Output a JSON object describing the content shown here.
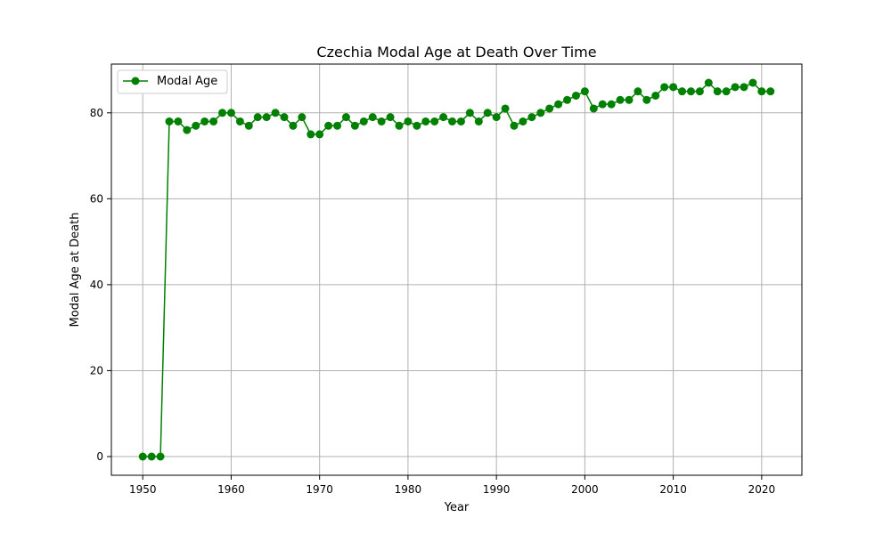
{
  "colors": {
    "series": "#008000",
    "grid": "#b0b0b0",
    "axes": "#000000",
    "background": "#ffffff"
  },
  "chart_data": {
    "type": "line",
    "title": "Czechia Modal Age at Death Over Time",
    "xlabel": "Year",
    "ylabel": "Modal Age at Death",
    "xlim": [
      1946.45,
      2024.55
    ],
    "ylim": [
      -4.35,
      91.35
    ],
    "xticks": [
      1950,
      1960,
      1970,
      1980,
      1990,
      2000,
      2010,
      2020
    ],
    "yticks": [
      0,
      20,
      40,
      60,
      80
    ],
    "grid": true,
    "legend": {
      "placement": "top-left",
      "entries": [
        "Modal Age"
      ]
    },
    "series": [
      {
        "name": "Modal Age",
        "color": "#008000",
        "marker": "circle",
        "x": [
          1950,
          1951,
          1952,
          1953,
          1954,
          1955,
          1956,
          1957,
          1958,
          1959,
          1960,
          1961,
          1962,
          1963,
          1964,
          1965,
          1966,
          1967,
          1968,
          1969,
          1970,
          1971,
          1972,
          1973,
          1974,
          1975,
          1976,
          1977,
          1978,
          1979,
          1980,
          1981,
          1982,
          1983,
          1984,
          1985,
          1986,
          1987,
          1988,
          1989,
          1990,
          1991,
          1992,
          1993,
          1994,
          1995,
          1996,
          1997,
          1998,
          1999,
          2000,
          2001,
          2002,
          2003,
          2004,
          2005,
          2006,
          2007,
          2008,
          2009,
          2010,
          2011,
          2012,
          2013,
          2014,
          2015,
          2016,
          2017,
          2018,
          2019,
          2020,
          2021
        ],
        "y": [
          0,
          0,
          0,
          78,
          78,
          76,
          77,
          78,
          78,
          80,
          80,
          78,
          77,
          79,
          79,
          80,
          79,
          77,
          79,
          75,
          75,
          77,
          77,
          79,
          77,
          78,
          79,
          78,
          79,
          77,
          78,
          77,
          78,
          78,
          79,
          78,
          78,
          80,
          78,
          80,
          79,
          81,
          77,
          78,
          79,
          80,
          81,
          82,
          83,
          84,
          85,
          81,
          82,
          82,
          83,
          83,
          85,
          83,
          84,
          86,
          86,
          85,
          85,
          85,
          87,
          85,
          85,
          86,
          86,
          87,
          85,
          85
        ]
      }
    ]
  }
}
